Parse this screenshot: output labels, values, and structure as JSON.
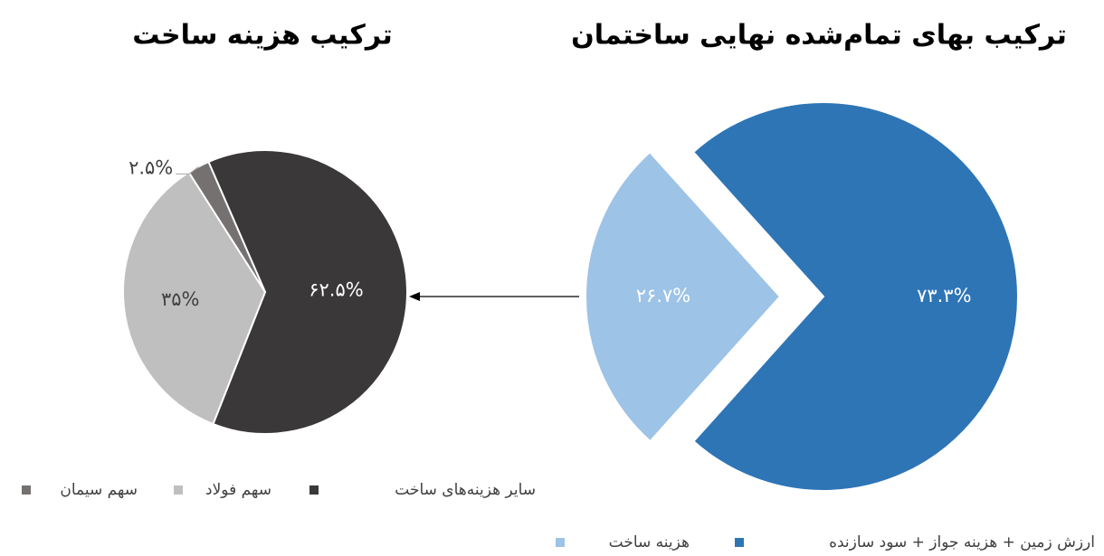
{
  "chart_data": [
    {
      "type": "pie",
      "title": "ترکیب بهای تمام‌شده نهایی ساختمان",
      "categories": [
        "ارزش زمین + هزینه جواز + سود سازنده",
        "هزینه ساخت"
      ],
      "values": [
        73.3,
        26.7
      ],
      "value_labels": [
        "۷۳.۳%",
        "۲۶.۷%"
      ],
      "colors": [
        "#2e75b6",
        "#9dc3e6"
      ]
    },
    {
      "type": "pie",
      "title": "ترکیب هزینه ساخت",
      "categories": [
        "سایر هزینه‌های ساخت",
        "سهم فولاد",
        "سهم سیمان"
      ],
      "values": [
        62.5,
        35,
        2.5
      ],
      "value_labels": [
        "۶۲.۵%",
        "۳۵%",
        "۲.۵%"
      ],
      "colors": [
        "#3a3838",
        "#bfbfbf",
        "#767171"
      ]
    }
  ]
}
